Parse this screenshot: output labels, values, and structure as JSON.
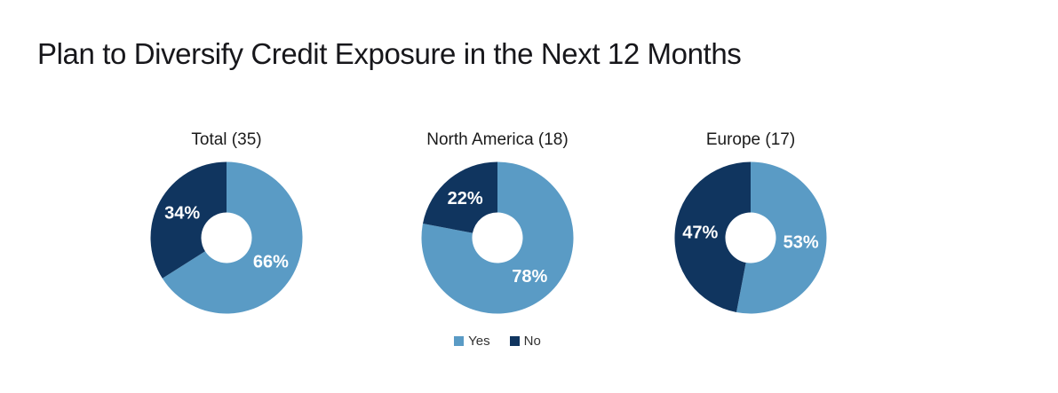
{
  "header": {
    "title": "Plan to Diversify Credit Exposure in the Next 12 Months"
  },
  "colors": {
    "yes": "#5A9BC5",
    "no": "#10355F",
    "background": "#FFFFFF",
    "label_text": "#FFFFFF"
  },
  "legend": {
    "position": "bottom-center",
    "items": [
      {
        "key": "yes",
        "label": "Yes"
      },
      {
        "key": "no",
        "label": "No"
      }
    ]
  },
  "chart_data": [
    {
      "type": "pie",
      "variant": "donut",
      "title": "Total (35)",
      "group": "Total",
      "respondents": 35,
      "start_angle_deg": 0,
      "direction": "clockwise",
      "slices": [
        {
          "label": "Yes",
          "value": 66,
          "display": "66%"
        },
        {
          "label": "No",
          "value": 34,
          "display": "34%"
        }
      ]
    },
    {
      "type": "pie",
      "variant": "donut",
      "title": "North America (18)",
      "group": "North America",
      "respondents": 18,
      "start_angle_deg": 0,
      "direction": "clockwise",
      "slices": [
        {
          "label": "Yes",
          "value": 78,
          "display": "78%"
        },
        {
          "label": "No",
          "value": 22,
          "display": "22%"
        }
      ]
    },
    {
      "type": "pie",
      "variant": "donut",
      "title": "Europe (17)",
      "group": "Europe",
      "respondents": 17,
      "start_angle_deg": 0,
      "direction": "clockwise",
      "slices": [
        {
          "label": "Yes",
          "value": 53,
          "display": "53%"
        },
        {
          "label": "No",
          "value": 47,
          "display": "47%"
        }
      ]
    }
  ]
}
